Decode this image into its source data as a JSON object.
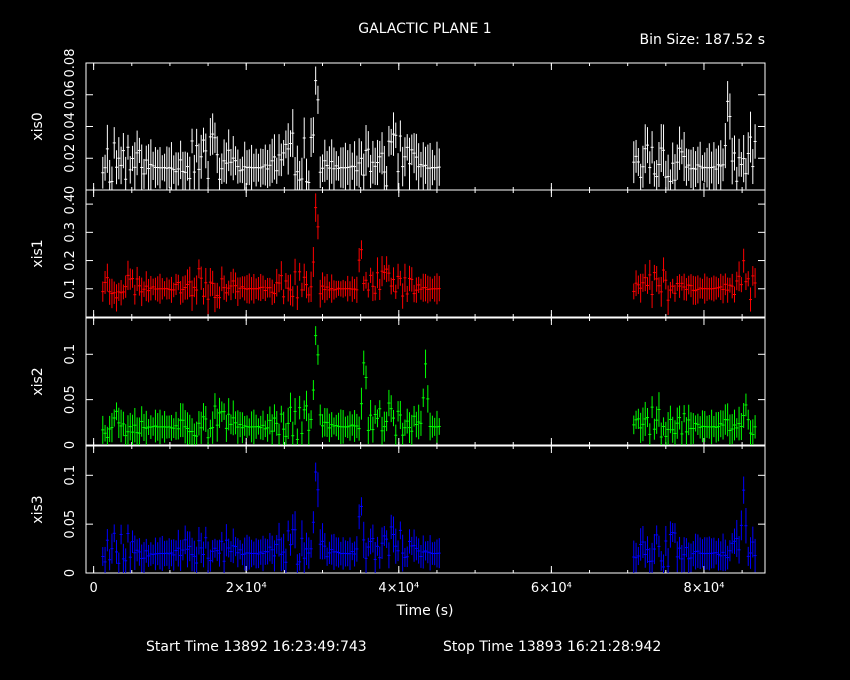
{
  "title": "GALACTIC PLANE 1",
  "bin_size": "Bin Size: 187.52 s",
  "xlabel": "Time (s)",
  "start_time": "Start Time 13892 16:23:49:743",
  "stop_time": "Stop Time 13893 16:21:28:942",
  "x_ticks": [
    {
      "v": 0,
      "label": "0"
    },
    {
      "v": 20000,
      "label": "2×10⁴"
    },
    {
      "v": 40000,
      "label": "4×10⁴"
    },
    {
      "v": 60000,
      "label": "6×10⁴"
    },
    {
      "v": 80000,
      "label": "8×10⁴"
    }
  ],
  "colors": {
    "xis0": "#ffffff",
    "xis1": "#ff0000",
    "xis2": "#00ff00",
    "xis3": "#0000ff",
    "axis": "#ffffff"
  },
  "chart_data": {
    "type": "line",
    "title": "GALACTIC PLANE 1",
    "xlabel": "Time (s)",
    "xlim": [
      -1000,
      88000
    ],
    "grid": false,
    "segments": [
      [
        1200,
        45400
      ],
      [
        70800,
        86800
      ]
    ],
    "bin_size_s": 187.52,
    "panels": [
      {
        "name": "xis0",
        "ylabel": "xis0",
        "color": "#ffffff",
        "ylim": [
          0,
          0.08
        ],
        "y_ticks": [
          {
            "v": 0,
            "label": "0"
          },
          {
            "v": 0.02,
            "label": "0.02"
          },
          {
            "v": 0.04,
            "label": "0.04"
          },
          {
            "v": 0.06,
            "label": "0.06"
          },
          {
            "v": 0.08,
            "label": "0.08"
          }
        ],
        "baseline": 0.014,
        "amp": 0.03,
        "max": 0.08,
        "seed": 11,
        "peaks": [
          {
            "x": 29200,
            "y": 0.08
          },
          {
            "x": 83200,
            "y": 0.065
          }
        ]
      },
      {
        "name": "xis1",
        "ylabel": "xis1",
        "color": "#ff0000",
        "ylim": [
          0,
          0.45
        ],
        "y_ticks": [
          {
            "v": 0.1,
            "label": "0.1"
          },
          {
            "v": 0.2,
            "label": "0.2"
          },
          {
            "v": 0.3,
            "label": "0.3"
          },
          {
            "v": 0.4,
            "label": "0.4"
          }
        ],
        "baseline": 0.1,
        "amp": 0.1,
        "max": 0.45,
        "seed": 23,
        "peaks": [
          {
            "x": 29200,
            "y": 0.45
          },
          {
            "x": 35000,
            "y": 0.28
          },
          {
            "x": 85200,
            "y": 0.2
          }
        ]
      },
      {
        "name": "xis2",
        "ylabel": "xis2",
        "color": "#00ff00",
        "ylim": [
          0,
          0.14
        ],
        "y_ticks": [
          {
            "v": 0,
            "label": "0"
          },
          {
            "v": 0.05,
            "label": "0.05"
          },
          {
            "v": 0.1,
            "label": "0.1"
          }
        ],
        "baseline": 0.02,
        "amp": 0.035,
        "max": 0.14,
        "seed": 37,
        "peaks": [
          {
            "x": 29200,
            "y": 0.14
          },
          {
            "x": 35500,
            "y": 0.105
          },
          {
            "x": 43500,
            "y": 0.09
          }
        ]
      },
      {
        "name": "xis3",
        "ylabel": "xis3",
        "color": "#0000ff",
        "ylim": [
          0,
          0.13
        ],
        "y_ticks": [
          {
            "v": 0,
            "label": "0"
          },
          {
            "v": 0.05,
            "label": "0.05"
          },
          {
            "v": 0.1,
            "label": "0.1"
          }
        ],
        "baseline": 0.02,
        "amp": 0.035,
        "max": 0.13,
        "seed": 53,
        "peaks": [
          {
            "x": 29200,
            "y": 0.12
          },
          {
            "x": 35000,
            "y": 0.08
          },
          {
            "x": 85200,
            "y": 0.085
          }
        ]
      }
    ]
  }
}
